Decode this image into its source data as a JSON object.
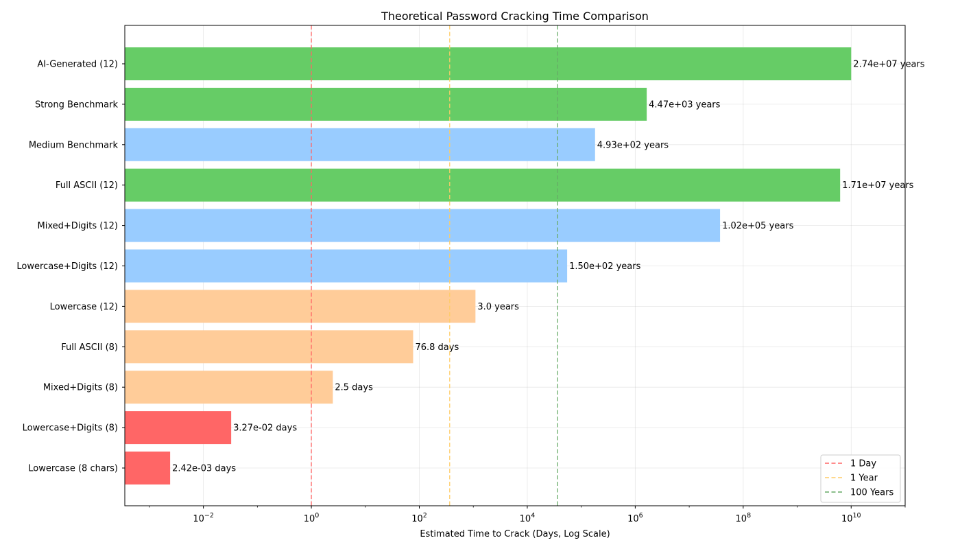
{
  "chart_data": {
    "type": "bar",
    "orientation": "horizontal",
    "title": "Theoretical Password Cracking Time Comparison",
    "xlabel": "Estimated Time to Crack (Days, Log Scale)",
    "ylabel": "",
    "x_scale": "log",
    "xlim": [
      0.00035,
      100000000000
    ],
    "grid": true,
    "legend_placement": "bottom-right",
    "categories": [
      "AI-Generated (12)",
      "Strong Benchmark",
      "Medium Benchmark",
      "Full ASCII (12)",
      "Mixed+Digits (12)",
      "Lowercase+Digits (12)",
      "Lowercase (12)",
      "Full ASCII (8)",
      "Mixed+Digits (8)",
      "Lowercase+Digits (8)",
      "Lowercase (8 chars)"
    ],
    "values_days": [
      10008000000,
      1632700,
      180100,
      6246000000,
      37260000,
      54790,
      1096,
      76.8,
      2.5,
      0.0327,
      0.00242
    ],
    "value_labels": [
      "2.74e+07 years",
      "4.47e+03 years",
      "4.93e+02 years",
      "1.71e+07 years",
      "1.02e+05 years",
      "1.50e+02 years",
      "3.0 years",
      "76.8 days",
      "2.5 days",
      "3.27e-02 days",
      "2.42e-03 days"
    ],
    "bar_colors": [
      "#66cc66",
      "#66cc66",
      "#99ccff",
      "#66cc66",
      "#99ccff",
      "#99ccff",
      "#ffcc99",
      "#ffcc99",
      "#ffcc99",
      "#ff6666",
      "#ff6666"
    ],
    "x_ticks": [
      {
        "value": 0.01,
        "base": "10",
        "exp": "−2"
      },
      {
        "value": 1,
        "base": "10",
        "exp": "0"
      },
      {
        "value": 100,
        "base": "10",
        "exp": "2"
      },
      {
        "value": 10000,
        "base": "10",
        "exp": "4"
      },
      {
        "value": 1000000,
        "base": "10",
        "exp": "6"
      },
      {
        "value": 100000000,
        "base": "10",
        "exp": "8"
      },
      {
        "value": 10000000000,
        "base": "10",
        "exp": "10"
      }
    ],
    "reference_lines": [
      {
        "name": "1 Day",
        "value": 1,
        "color": "#ff6666"
      },
      {
        "name": "1 Year",
        "value": 365,
        "color": "#ffcc66"
      },
      {
        "name": "100 Years",
        "value": 36500,
        "color": "#66aa66"
      }
    ]
  }
}
